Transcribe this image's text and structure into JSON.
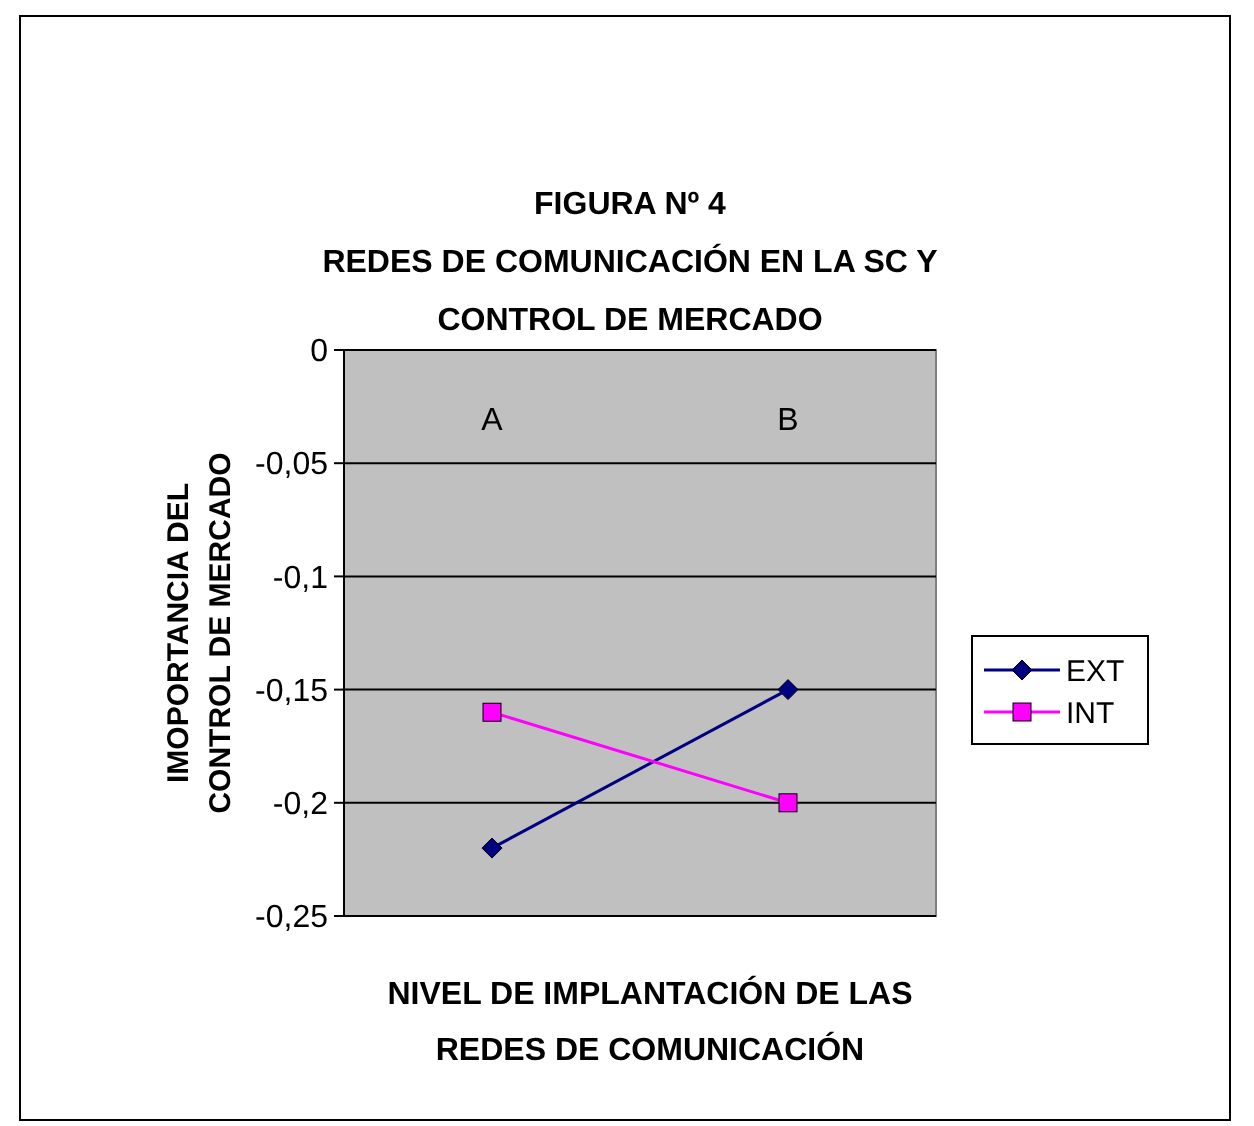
{
  "chart_data": {
    "type": "line",
    "title": "FIGURA Nº 4\nREDES DE COMUNICACIÓN EN LA SC Y\nCONTROL DE MERCADO",
    "xlabel": "NIVEL DE IMPLANTACIÓN DE LAS\nREDES DE COMUNICACIÓN",
    "ylabel": "IMOPORTANCIA DEL\nCONTROL DE MERCADO",
    "categories": [
      "A",
      "B"
    ],
    "series": [
      {
        "name": "EXT",
        "color": "#000080",
        "marker": "diamond",
        "values": [
          -0.22,
          -0.15
        ]
      },
      {
        "name": "INT",
        "color": "#ff00ff",
        "marker": "square",
        "values": [
          -0.16,
          -0.2
        ]
      }
    ],
    "ylim": [
      -0.25,
      0
    ],
    "yticks": [
      {
        "value": -0.25,
        "label": "-0,25"
      },
      {
        "value": -0.2,
        "label": "-0,2"
      },
      {
        "value": -0.15,
        "label": "-0,15"
      },
      {
        "value": -0.1,
        "label": "-0,1"
      },
      {
        "value": -0.05,
        "label": "-0,05"
      },
      0
    ],
    "grid": "y",
    "legend": "right"
  }
}
